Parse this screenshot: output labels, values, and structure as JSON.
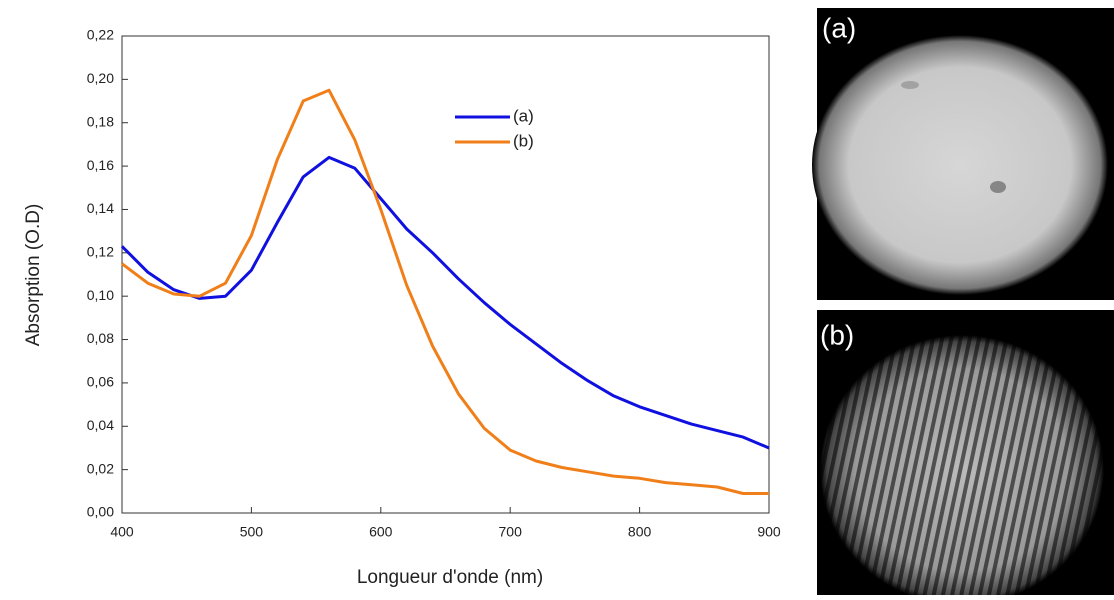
{
  "chart_data": {
    "type": "line",
    "x_label": "Longueur d'onde (nm)",
    "y_label": "Absorption (O.D)",
    "x": [
      400,
      420,
      440,
      460,
      480,
      500,
      520,
      540,
      560,
      580,
      600,
      620,
      640,
      660,
      680,
      700,
      720,
      740,
      760,
      780,
      800,
      820,
      840,
      860,
      880,
      900
    ],
    "series": [
      {
        "name": "(a)",
        "color": "#1010e0",
        "values": [
          0.123,
          0.111,
          0.103,
          0.099,
          0.1,
          0.112,
          0.134,
          0.155,
          0.164,
          0.159,
          0.145,
          0.131,
          0.12,
          0.108,
          0.097,
          0.087,
          0.078,
          0.069,
          0.061,
          0.054,
          0.049,
          0.045,
          0.041,
          0.038,
          0.035,
          0.03
        ]
      },
      {
        "name": "(b)",
        "color": "#f07f1a",
        "values": [
          0.115,
          0.106,
          0.101,
          0.1,
          0.106,
          0.128,
          0.163,
          0.19,
          0.195,
          0.172,
          0.14,
          0.105,
          0.077,
          0.055,
          0.039,
          0.029,
          0.024,
          0.021,
          0.019,
          0.017,
          0.016,
          0.014,
          0.013,
          0.012,
          0.009,
          0.009
        ]
      }
    ],
    "xlim": [
      400,
      900
    ],
    "xticks": [
      400,
      500,
      600,
      700,
      800,
      900
    ],
    "ylim": [
      0,
      0.22
    ],
    "yticks": [
      {
        "value": 0,
        "label": "0,00"
      },
      {
        "value": 0.02,
        "label": "0,02"
      },
      {
        "value": 0.04,
        "label": "0,04"
      },
      {
        "value": 0.06,
        "label": "0,06"
      },
      {
        "value": 0.08,
        "label": "0,08"
      },
      {
        "value": 0.1,
        "label": "0,10"
      },
      {
        "value": 0.12,
        "label": "0,12"
      },
      {
        "value": 0.14,
        "label": "0,14"
      },
      {
        "value": 0.16,
        "label": "0,16"
      },
      {
        "value": 0.18,
        "label": "0,18"
      },
      {
        "value": 0.2,
        "label": "0,20"
      },
      {
        "value": 0.22,
        "label": "0,22"
      }
    ],
    "grid": false,
    "legend": "upper center"
  },
  "panels": [
    {
      "label": "(a)"
    },
    {
      "label": "(b)"
    }
  ]
}
